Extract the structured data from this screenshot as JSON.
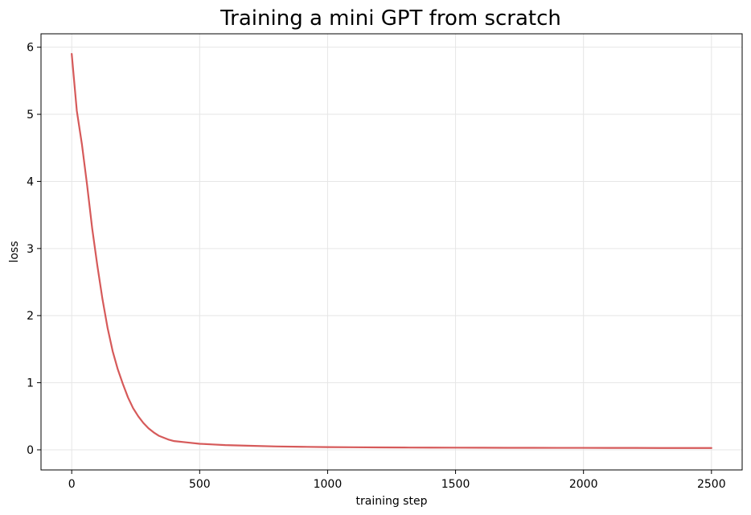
{
  "chart_data": {
    "type": "line",
    "title": "Training a mini GPT from scratch",
    "xlabel": "training step",
    "ylabel": "loss",
    "xlim": [
      -120,
      2620
    ],
    "ylim": [
      -0.3,
      6.2
    ],
    "x_ticks": [
      0,
      500,
      1000,
      1500,
      2000,
      2500
    ],
    "y_ticks": [
      0,
      1,
      2,
      3,
      4,
      5,
      6
    ],
    "grid": true,
    "legend": "none",
    "colors": {
      "series": "#d65a5a",
      "grid": "#e6e6e6",
      "axis": "#000000"
    },
    "series": [
      {
        "x": [
          0,
          20,
          40,
          60,
          80,
          100,
          120,
          140,
          160,
          180,
          200,
          220,
          240,
          260,
          280,
          300,
          320,
          340,
          360,
          380,
          400,
          450,
          500,
          550,
          600,
          700,
          800,
          900,
          1000,
          1100,
          1200,
          1300,
          1400,
          1500,
          1600,
          1700,
          1800,
          1900,
          2000,
          2100,
          2200,
          2300,
          2400,
          2500
        ],
        "y": [
          5.9,
          5.05,
          4.55,
          3.95,
          3.3,
          2.75,
          2.25,
          1.82,
          1.47,
          1.2,
          0.98,
          0.78,
          0.62,
          0.5,
          0.4,
          0.32,
          0.26,
          0.21,
          0.18,
          0.15,
          0.13,
          0.11,
          0.09,
          0.08,
          0.07,
          0.06,
          0.05,
          0.045,
          0.04,
          0.038,
          0.036,
          0.034,
          0.033,
          0.032,
          0.031,
          0.03,
          0.03,
          0.029,
          0.029,
          0.028,
          0.028,
          0.027,
          0.027,
          0.027
        ]
      }
    ]
  }
}
